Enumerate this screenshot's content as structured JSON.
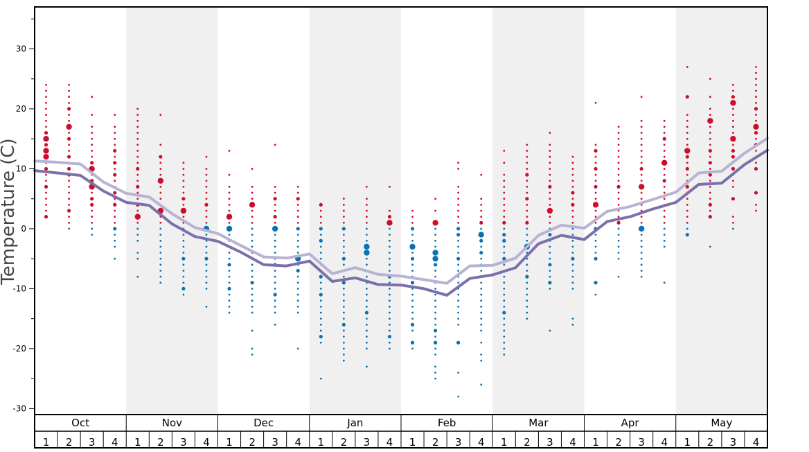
{
  "chart_data": {
    "type": "scatter",
    "title": "",
    "xlabel": "",
    "ylabel": "Temperature (C)",
    "ylim": [
      -31,
      37
    ],
    "y_ticks": [
      30,
      20,
      10,
      0,
      -10,
      -20,
      -30
    ],
    "months": [
      "Oct",
      "Nov",
      "Dec",
      "Jan",
      "Feb",
      "Mar",
      "Apr",
      "May"
    ],
    "weeks": [
      "1",
      "2",
      "3",
      "4"
    ],
    "shaded_months": [
      "Nov",
      "Jan",
      "Mar",
      "May"
    ],
    "colors": {
      "warm_dot": "#cc0d2b",
      "cold_dot": "#0873b0",
      "line_light": "#b8b3d3",
      "line_dark": "#7b70aa",
      "shade": "#f0f0f0"
    },
    "series": [
      {
        "values": [
          11.3,
          11.1,
          10.8,
          7.8,
          5.9,
          5.3,
          2.5,
          0.2,
          -0.8,
          -2.8,
          -4.7,
          -4.9,
          -4.2,
          -7.5,
          -6.5,
          -7.6,
          -7.9,
          -8.5,
          -9.1,
          -6.2,
          -6.1,
          -4.9,
          -1.1,
          0.6,
          0.1,
          2.9,
          3.7,
          4.9,
          6.1,
          9.3,
          9.6,
          12.6,
          15.1
        ]
      },
      {
        "values": [
          9.7,
          9.3,
          8.9,
          6.3,
          4.4,
          3.9,
          0.8,
          -1.3,
          -2.1,
          -3.9,
          -6.0,
          -6.2,
          -5.4,
          -8.8,
          -8.2,
          -9.3,
          -9.4,
          -10.0,
          -11.1,
          -8.3,
          -7.7,
          -6.5,
          -2.5,
          -1.1,
          -1.8,
          1.2,
          2.0,
          3.3,
          4.4,
          7.4,
          7.6,
          10.7,
          13.1
        ]
      }
    ],
    "dots": [
      {
        "week": 0,
        "values": [
          24,
          23,
          22,
          21,
          20,
          19,
          18,
          17,
          16,
          15,
          14,
          13,
          12,
          11,
          10,
          9,
          8,
          7,
          6,
          5,
          4,
          3,
          2
        ],
        "big": [
          15,
          13,
          12
        ],
        "mid": [
          16,
          14,
          10,
          7,
          2
        ]
      },
      {
        "week": 1,
        "values": [
          24,
          23,
          22,
          21,
          20,
          19,
          18,
          17,
          16,
          15,
          14,
          13,
          12,
          11,
          10,
          9,
          8,
          7,
          6,
          5,
          4,
          3,
          2,
          1,
          0
        ],
        "big": [
          17
        ],
        "mid": [
          20,
          15,
          12,
          10,
          9,
          3
        ]
      },
      {
        "week": 2,
        "values": [
          22,
          19,
          17,
          16,
          15,
          14,
          13,
          12,
          11,
          10,
          9,
          8,
          7,
          6,
          5,
          4,
          3,
          2,
          1,
          0,
          -1
        ],
        "big": [
          10,
          7
        ],
        "mid": [
          11,
          8,
          5,
          4
        ]
      },
      {
        "week": 3,
        "values": [
          19,
          17,
          16,
          15,
          14,
          13,
          12,
          11,
          10,
          9,
          8,
          7,
          6,
          5,
          4,
          3,
          2,
          1,
          0,
          -1,
          -2,
          -3,
          -5
        ],
        "big": [],
        "mid": [
          13,
          11,
          9,
          6,
          4,
          0
        ]
      },
      {
        "week": 4,
        "values": [
          20,
          19,
          18,
          17,
          16,
          15,
          14,
          13,
          12,
          11,
          10,
          9,
          8,
          7,
          6,
          5,
          4,
          3,
          2,
          1,
          0,
          -1,
          -2,
          -4,
          -5,
          -8
        ],
        "big": [
          2
        ],
        "mid": [
          10,
          7,
          4
        ]
      },
      {
        "week": 5,
        "values": [
          19,
          14,
          12,
          11,
          10,
          9,
          8,
          7,
          6,
          5,
          4,
          3,
          2,
          1,
          0,
          -1,
          -2,
          -3,
          -4,
          -5,
          -6,
          -7,
          -8,
          -9
        ],
        "big": [
          8,
          3
        ],
        "mid": [
          12
        ]
      },
      {
        "week": 6,
        "values": [
          11,
          10,
          9,
          8,
          7,
          6,
          5,
          4,
          3,
          2,
          1,
          0,
          -1,
          -2,
          -3,
          -4,
          -5,
          -6,
          -7,
          -8,
          -9,
          -10,
          -11
        ],
        "big": [
          3
        ],
        "mid": [
          5,
          -5,
          -10
        ]
      },
      {
        "week": 7,
        "values": [
          12,
          10,
          9,
          8,
          7,
          6,
          5,
          4,
          3,
          2,
          1,
          0,
          -1,
          -2,
          -3,
          -4,
          -5,
          -6,
          -7,
          -8,
          -9,
          -10,
          -13
        ],
        "big": [
          0
        ],
        "mid": [
          4,
          -5
        ]
      },
      {
        "week": 8,
        "values": [
          13,
          9,
          7,
          6,
          5,
          4,
          3,
          2,
          1,
          0,
          -1,
          -2,
          -3,
          -4,
          -5,
          -6,
          -7,
          -8,
          -9,
          -10,
          -11,
          -12,
          -13,
          -14
        ],
        "big": [
          2,
          0
        ],
        "mid": [
          -6,
          -10
        ]
      },
      {
        "week": 9,
        "values": [
          10,
          7,
          6,
          5,
          4,
          3,
          2,
          1,
          0,
          -1,
          -2,
          -3,
          -4,
          -5,
          -6,
          -7,
          -8,
          -9,
          -10,
          -11,
          -12,
          -13,
          -14,
          -17,
          -20,
          -21
        ],
        "big": [
          4
        ],
        "mid": [
          -9
        ]
      },
      {
        "week": 10,
        "values": [
          14,
          7,
          6,
          5,
          4,
          3,
          2,
          1,
          0,
          -1,
          -2,
          -3,
          -4,
          -5,
          -6,
          -7,
          -8,
          -9,
          -10,
          -11,
          -12,
          -13,
          -14,
          -16
        ],
        "big": [
          0
        ],
        "mid": [
          5,
          2,
          -6,
          -11
        ]
      },
      {
        "week": 11,
        "values": [
          7,
          6,
          5,
          4,
          3,
          2,
          1,
          0,
          -1,
          -2,
          -3,
          -4,
          -5,
          -6,
          -7,
          -8,
          -9,
          -10,
          -11,
          -12,
          -13,
          -14,
          -20
        ],
        "big": [
          -5
        ],
        "mid": [
          5,
          0,
          -7
        ]
      },
      {
        "week": 12,
        "values": [
          4,
          3,
          2,
          1,
          0,
          -1,
          -2,
          -3,
          -4,
          -5,
          -6,
          -7,
          -8,
          -9,
          -10,
          -11,
          -12,
          -13,
          -14,
          -15,
          -16,
          -17,
          -18,
          -19,
          -25
        ],
        "big": [],
        "mid": [
          4,
          0,
          -2,
          -8,
          -11,
          -18
        ]
      },
      {
        "week": 13,
        "values": [
          5,
          4,
          3,
          2,
          1,
          0,
          -1,
          -2,
          -3,
          -4,
          -5,
          -6,
          -7,
          -8,
          -9,
          -10,
          -11,
          -12,
          -13,
          -14,
          -15,
          -16,
          -17,
          -18,
          -19,
          -20,
          -21,
          -22
        ],
        "big": [],
        "mid": [
          0,
          -5,
          -9,
          -16
        ]
      },
      {
        "week": 14,
        "values": [
          7,
          5,
          4,
          3,
          2,
          1,
          0,
          -1,
          -2,
          -3,
          -4,
          -5,
          -6,
          -7,
          -8,
          -9,
          -10,
          -11,
          -12,
          -13,
          -14,
          -15,
          -16,
          -17,
          -18,
          -19,
          -20,
          -23
        ],
        "big": [
          -3,
          -4
        ],
        "mid": [
          -14
        ]
      },
      {
        "week": 15,
        "values": [
          7,
          3,
          2,
          1,
          0,
          -1,
          -2,
          -3,
          -4,
          -5,
          -6,
          -7,
          -8,
          -9,
          -10,
          -11,
          -12,
          -13,
          -14,
          -15,
          -16,
          -17,
          -18,
          -19,
          -20
        ],
        "big": [
          1
        ],
        "mid": [
          2,
          -8,
          -18
        ]
      },
      {
        "week": 16,
        "values": [
          3,
          2,
          1,
          0,
          -1,
          -2,
          -3,
          -4,
          -5,
          -6,
          -7,
          -8,
          -9,
          -10,
          -11,
          -12,
          -13,
          -14,
          -15,
          -16,
          -17,
          -19,
          -20
        ],
        "big": [
          -3
        ],
        "mid": [
          0,
          -5,
          -9,
          -16,
          -19
        ]
      },
      {
        "week": 17,
        "values": [
          5,
          3,
          1,
          0,
          -1,
          -2,
          -3,
          -4,
          -5,
          -6,
          -7,
          -8,
          -9,
          -10,
          -11,
          -12,
          -13,
          -14,
          -15,
          -16,
          -17,
          -18,
          -19,
          -20,
          -21,
          -23,
          -24,
          -25
        ],
        "big": [
          1,
          -4,
          -5
        ],
        "mid": [
          -6,
          -17,
          -19
        ]
      },
      {
        "week": 18,
        "values": [
          11,
          10,
          7,
          6,
          5,
          4,
          3,
          2,
          1,
          0,
          -1,
          -2,
          -3,
          -4,
          -5,
          -6,
          -7,
          -8,
          -9,
          -10,
          -11,
          -12,
          -13,
          -14,
          -15,
          -16,
          -19,
          -24,
          -28
        ],
        "big": [],
        "mid": [
          0,
          -1,
          -5,
          -19
        ]
      },
      {
        "week": 19,
        "values": [
          9,
          5,
          4,
          3,
          2,
          1,
          0,
          -1,
          -2,
          -3,
          -4,
          -5,
          -6,
          -7,
          -8,
          -9,
          -10,
          -11,
          -12,
          -13,
          -14,
          -15,
          -16,
          -17,
          -19,
          -21,
          -22,
          -26
        ],
        "big": [
          -1
        ],
        "mid": [
          1,
          -2,
          -4
        ]
      },
      {
        "week": 20,
        "values": [
          13,
          11,
          9,
          8,
          7,
          6,
          5,
          4,
          3,
          2,
          1,
          0,
          -1,
          -2,
          -3,
          -4,
          -5,
          -6,
          -7,
          -8,
          -9,
          -10,
          -11,
          -12,
          -13,
          -14,
          -15,
          -16,
          -17,
          -18,
          -19,
          -20,
          -21
        ],
        "big": [],
        "mid": [
          1,
          -1,
          -2,
          -5,
          -14
        ]
      },
      {
        "week": 21,
        "values": [
          14,
          13,
          12,
          11,
          10,
          9,
          8,
          7,
          6,
          5,
          4,
          3,
          2,
          1,
          0,
          -1,
          -2,
          -3,
          -4,
          -5,
          -6,
          -7,
          -8,
          -9,
          -10,
          -11,
          -12,
          -13,
          -14,
          -15
        ],
        "big": [
          -3
        ],
        "mid": [
          9,
          5,
          1,
          -8
        ]
      },
      {
        "week": 22,
        "values": [
          16,
          14,
          13,
          12,
          11,
          10,
          9,
          8,
          7,
          6,
          5,
          4,
          3,
          2,
          1,
          0,
          -1,
          -2,
          -3,
          -4,
          -5,
          -6,
          -7,
          -8,
          -9,
          -10,
          -17
        ],
        "big": [
          3
        ],
        "mid": [
          7,
          -1,
          -6,
          -9
        ]
      },
      {
        "week": 23,
        "values": [
          12,
          11,
          10,
          9,
          8,
          7,
          6,
          5,
          4,
          3,
          2,
          1,
          0,
          -1,
          -2,
          -3,
          -4,
          -5,
          -6,
          -7,
          -8,
          -9,
          -10,
          -15,
          -16
        ],
        "big": [],
        "mid": [
          6,
          4,
          -5
        ]
      },
      {
        "week": 24,
        "values": [
          21,
          14,
          13,
          12,
          11,
          10,
          9,
          8,
          7,
          6,
          5,
          4,
          3,
          2,
          1,
          0,
          -1,
          -2,
          -3,
          -4,
          -5,
          -9,
          -11
        ],
        "big": [
          4
        ],
        "mid": [
          13,
          10,
          7,
          0,
          -5,
          -9
        ]
      },
      {
        "week": 25,
        "values": [
          17,
          16,
          15,
          14,
          13,
          12,
          11,
          10,
          9,
          8,
          7,
          6,
          5,
          4,
          3,
          2,
          1,
          0,
          -1,
          -2,
          -3,
          -4,
          -5,
          -8
        ],
        "big": [],
        "mid": [
          7,
          1
        ]
      },
      {
        "week": 26,
        "values": [
          22,
          18,
          17,
          16,
          15,
          14,
          13,
          12,
          11,
          10,
          9,
          8,
          7,
          6,
          5,
          4,
          3,
          2,
          1,
          0,
          -1,
          -2,
          -3,
          -4,
          -5,
          -6,
          -7,
          -8
        ],
        "big": [
          7,
          0
        ],
        "mid": [
          10
        ]
      },
      {
        "week": 27,
        "values": [
          18,
          17,
          16,
          15,
          14,
          13,
          12,
          11,
          10,
          9,
          8,
          7,
          6,
          5,
          4,
          3,
          2,
          1,
          0,
          -1,
          -2,
          -3,
          -9
        ],
        "big": [
          11
        ],
        "mid": [
          15,
          8
        ]
      },
      {
        "week": 28,
        "values": [
          27,
          22,
          19,
          18,
          17,
          16,
          15,
          14,
          13,
          12,
          11,
          10,
          9,
          8,
          7,
          6,
          5,
          4,
          3,
          2,
          1,
          0,
          -1
        ],
        "big": [
          13
        ],
        "mid": [
          22,
          12,
          10,
          7,
          -1
        ]
      },
      {
        "week": 29,
        "values": [
          25,
          22,
          20,
          19,
          18,
          17,
          16,
          15,
          14,
          13,
          12,
          11,
          10,
          9,
          8,
          7,
          6,
          5,
          4,
          3,
          2,
          -3
        ],
        "big": [
          18
        ],
        "mid": [
          13,
          11,
          9,
          4,
          2
        ]
      },
      {
        "week": 30,
        "values": [
          24,
          23,
          22,
          21,
          20,
          19,
          18,
          17,
          16,
          15,
          14,
          13,
          12,
          11,
          10,
          9,
          8,
          7,
          5,
          2,
          1,
          0
        ],
        "big": [
          21,
          15
        ],
        "mid": [
          22,
          13,
          12,
          10,
          5
        ]
      },
      {
        "week": 31,
        "values": [
          27,
          26,
          25,
          24,
          23,
          22,
          21,
          20,
          19,
          18,
          17,
          16,
          15,
          14,
          13,
          12,
          11,
          10,
          6,
          4,
          3
        ],
        "big": [
          17
        ],
        "mid": [
          20,
          16,
          14,
          10,
          6
        ]
      }
    ]
  }
}
